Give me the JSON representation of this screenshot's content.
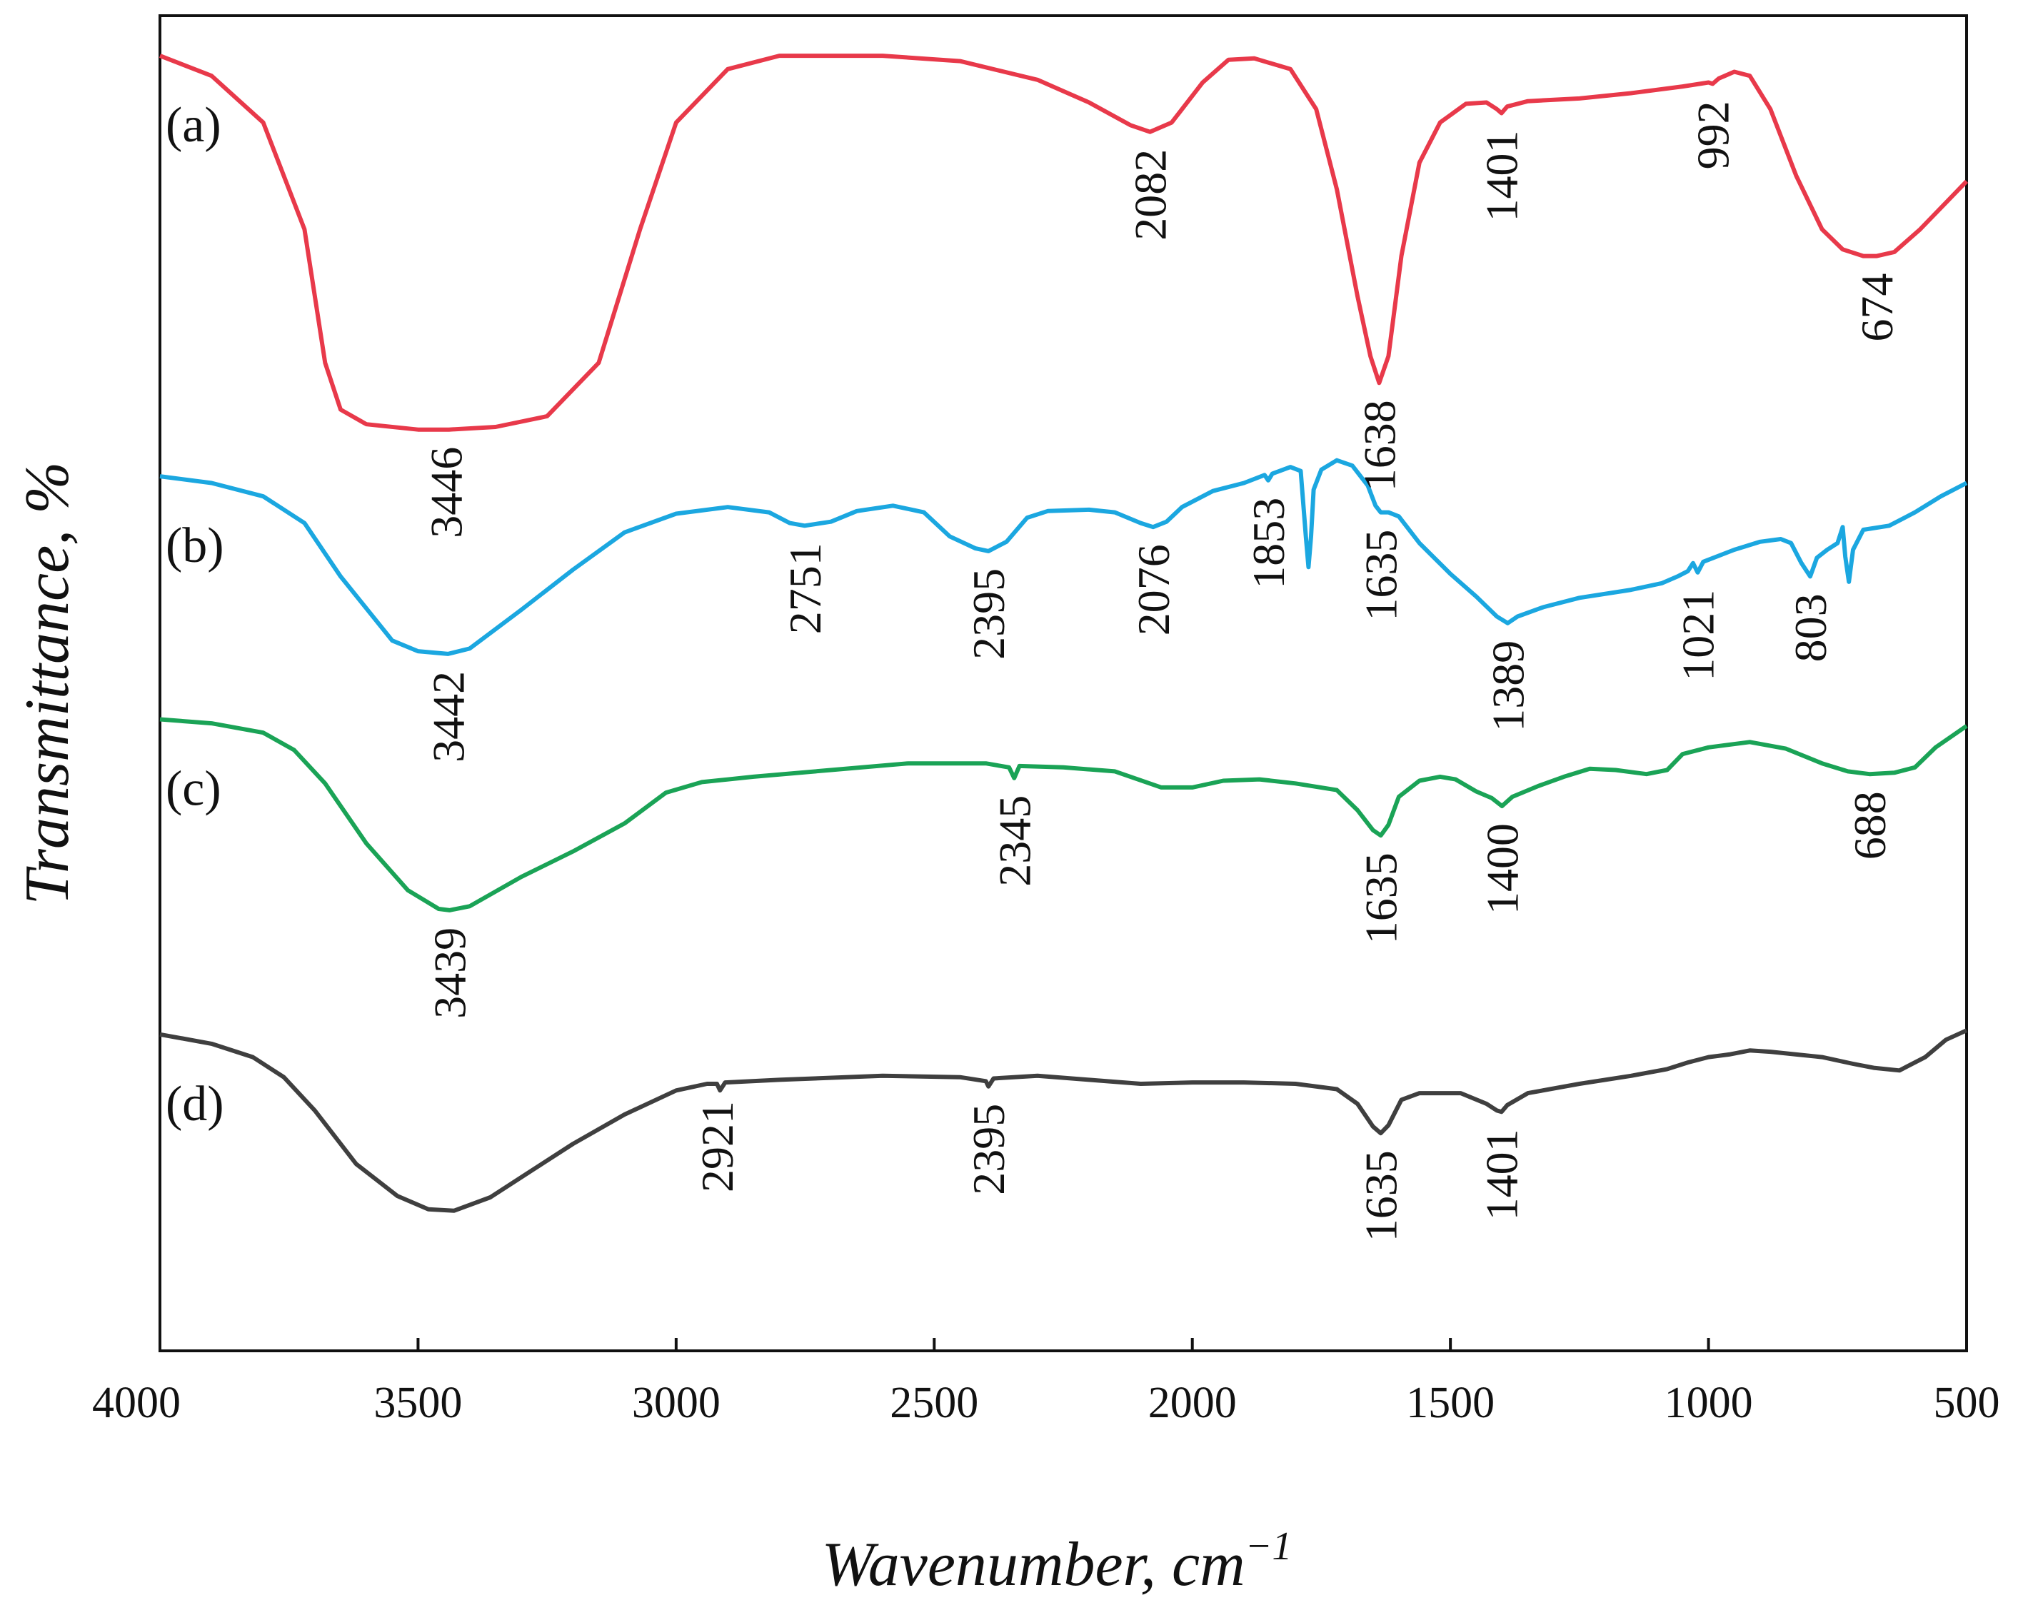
{
  "chart_data": {
    "type": "line",
    "title": "",
    "xlabel": "Wavenumber, cm",
    "xlabel_superscript": "−1",
    "ylabel": "Transmittance, %",
    "xlim": [
      4000,
      500
    ],
    "x_reversed": true,
    "x_ticks": [
      4000,
      3500,
      3000,
      2500,
      2000,
      1500,
      1000,
      500
    ],
    "x_tick_labels": [
      "4000",
      "3500",
      "3000",
      "2500",
      "2000",
      "1500",
      "1000",
      "500"
    ],
    "ylim": [
      0,
      100
    ],
    "y_ticks_shown": false,
    "grid": false,
    "series": [
      {
        "name": "(a)",
        "color": "#e8394a",
        "points": [
          [
            4000,
            97
          ],
          [
            3900,
            95.5
          ],
          [
            3800,
            92
          ],
          [
            3720,
            84
          ],
          [
            3680,
            74
          ],
          [
            3650,
            70.5
          ],
          [
            3600,
            69.4
          ],
          [
            3500,
            69
          ],
          [
            3440,
            69
          ],
          [
            3350,
            69.2
          ],
          [
            3250,
            70
          ],
          [
            3150,
            74
          ],
          [
            3070,
            84
          ],
          [
            3000,
            92
          ],
          [
            2900,
            96
          ],
          [
            2800,
            97
          ],
          [
            2600,
            97
          ],
          [
            2450,
            96.6
          ],
          [
            2300,
            95.2
          ],
          [
            2200,
            93.5
          ],
          [
            2120,
            91.8
          ],
          [
            2082,
            91.3
          ],
          [
            2040,
            92
          ],
          [
            1980,
            95
          ],
          [
            1930,
            96.7
          ],
          [
            1880,
            96.8
          ],
          [
            1810,
            96
          ],
          [
            1760,
            93
          ],
          [
            1720,
            87
          ],
          [
            1680,
            79
          ],
          [
            1655,
            74.5
          ],
          [
            1638,
            72.5
          ],
          [
            1620,
            74.5
          ],
          [
            1595,
            82
          ],
          [
            1560,
            89
          ],
          [
            1520,
            92
          ],
          [
            1470,
            93.4
          ],
          [
            1430,
            93.5
          ],
          [
            1410,
            93
          ],
          [
            1401,
            92.7
          ],
          [
            1390,
            93.2
          ],
          [
            1350,
            93.6
          ],
          [
            1250,
            93.8
          ],
          [
            1150,
            94.2
          ],
          [
            1050,
            94.7
          ],
          [
            1000,
            95
          ],
          [
            992,
            94.9
          ],
          [
            980,
            95.3
          ],
          [
            950,
            95.8
          ],
          [
            920,
            95.5
          ],
          [
            880,
            93
          ],
          [
            830,
            88
          ],
          [
            780,
            84
          ],
          [
            740,
            82.5
          ],
          [
            700,
            82
          ],
          [
            674,
            82
          ],
          [
            640,
            82.3
          ],
          [
            590,
            84
          ],
          [
            540,
            86
          ],
          [
            500,
            87.6
          ]
        ]
      },
      {
        "name": "(b)",
        "color": "#1ba7e0",
        "points": [
          [
            4000,
            65.5
          ],
          [
            3900,
            65
          ],
          [
            3800,
            64
          ],
          [
            3720,
            62
          ],
          [
            3650,
            58
          ],
          [
            3550,
            53.2
          ],
          [
            3500,
            52.4
          ],
          [
            3442,
            52.2
          ],
          [
            3400,
            52.6
          ],
          [
            3300,
            55.5
          ],
          [
            3200,
            58.5
          ],
          [
            3100,
            61.3
          ],
          [
            3000,
            62.7
          ],
          [
            2900,
            63.2
          ],
          [
            2820,
            62.8
          ],
          [
            2780,
            62
          ],
          [
            2751,
            61.8
          ],
          [
            2700,
            62.1
          ],
          [
            2650,
            62.9
          ],
          [
            2580,
            63.3
          ],
          [
            2520,
            62.8
          ],
          [
            2470,
            61
          ],
          [
            2420,
            60.1
          ],
          [
            2395,
            59.9
          ],
          [
            2360,
            60.6
          ],
          [
            2320,
            62.4
          ],
          [
            2280,
            62.9
          ],
          [
            2200,
            63
          ],
          [
            2150,
            62.8
          ],
          [
            2100,
            62
          ],
          [
            2076,
            61.7
          ],
          [
            2050,
            62.1
          ],
          [
            2020,
            63.2
          ],
          [
            1960,
            64.4
          ],
          [
            1900,
            65
          ],
          [
            1860,
            65.6
          ],
          [
            1853,
            65.2
          ],
          [
            1845,
            65.7
          ],
          [
            1810,
            66.2
          ],
          [
            1790,
            65.9
          ],
          [
            1780,
            61
          ],
          [
            1775,
            58.7
          ],
          [
            1770,
            61
          ],
          [
            1765,
            64.5
          ],
          [
            1750,
            66
          ],
          [
            1720,
            66.7
          ],
          [
            1690,
            66.3
          ],
          [
            1660,
            64.8
          ],
          [
            1645,
            63.3
          ],
          [
            1635,
            62.8
          ],
          [
            1620,
            62.8
          ],
          [
            1600,
            62.5
          ],
          [
            1560,
            60.5
          ],
          [
            1500,
            58.2
          ],
          [
            1450,
            56.5
          ],
          [
            1410,
            55
          ],
          [
            1389,
            54.5
          ],
          [
            1370,
            55
          ],
          [
            1320,
            55.7
          ],
          [
            1250,
            56.4
          ],
          [
            1150,
            57
          ],
          [
            1090,
            57.5
          ],
          [
            1060,
            58
          ],
          [
            1040,
            58.4
          ],
          [
            1030,
            59
          ],
          [
            1021,
            58.3
          ],
          [
            1010,
            59.1
          ],
          [
            950,
            60
          ],
          [
            900,
            60.6
          ],
          [
            860,
            60.8
          ],
          [
            840,
            60.5
          ],
          [
            820,
            59
          ],
          [
            803,
            58
          ],
          [
            790,
            59.4
          ],
          [
            770,
            60
          ],
          [
            750,
            60.5
          ],
          [
            740,
            61.7
          ],
          [
            735,
            59.5
          ],
          [
            728,
            57.6
          ],
          [
            720,
            60
          ],
          [
            700,
            61.5
          ],
          [
            650,
            61.8
          ],
          [
            600,
            62.8
          ],
          [
            550,
            64
          ],
          [
            500,
            65
          ]
        ]
      },
      {
        "name": "(c)",
        "color": "#1aa356",
        "points": [
          [
            4000,
            47.3
          ],
          [
            3900,
            47
          ],
          [
            3800,
            46.3
          ],
          [
            3740,
            45
          ],
          [
            3680,
            42.5
          ],
          [
            3600,
            38
          ],
          [
            3520,
            34.5
          ],
          [
            3460,
            33.1
          ],
          [
            3439,
            33
          ],
          [
            3400,
            33.3
          ],
          [
            3300,
            35.5
          ],
          [
            3200,
            37.4
          ],
          [
            3100,
            39.5
          ],
          [
            3020,
            41.8
          ],
          [
            2950,
            42.6
          ],
          [
            2850,
            43
          ],
          [
            2700,
            43.5
          ],
          [
            2550,
            44
          ],
          [
            2400,
            44
          ],
          [
            2355,
            43.7
          ],
          [
            2345,
            42.9
          ],
          [
            2335,
            43.8
          ],
          [
            2250,
            43.7
          ],
          [
            2150,
            43.4
          ],
          [
            2060,
            42.2
          ],
          [
            2000,
            42.2
          ],
          [
            1940,
            42.7
          ],
          [
            1870,
            42.8
          ],
          [
            1800,
            42.5
          ],
          [
            1720,
            42
          ],
          [
            1680,
            40.5
          ],
          [
            1650,
            39
          ],
          [
            1635,
            38.6
          ],
          [
            1620,
            39.4
          ],
          [
            1600,
            41.5
          ],
          [
            1560,
            42.7
          ],
          [
            1520,
            43
          ],
          [
            1490,
            42.8
          ],
          [
            1450,
            41.9
          ],
          [
            1420,
            41.4
          ],
          [
            1400,
            40.8
          ],
          [
            1380,
            41.5
          ],
          [
            1330,
            42.3
          ],
          [
            1280,
            43
          ],
          [
            1230,
            43.6
          ],
          [
            1180,
            43.5
          ],
          [
            1120,
            43.2
          ],
          [
            1080,
            43.5
          ],
          [
            1050,
            44.7
          ],
          [
            1000,
            45.2
          ],
          [
            920,
            45.6
          ],
          [
            850,
            45.1
          ],
          [
            780,
            44
          ],
          [
            730,
            43.4
          ],
          [
            688,
            43.2
          ],
          [
            640,
            43.3
          ],
          [
            600,
            43.7
          ],
          [
            560,
            45.2
          ],
          [
            500,
            46.8
          ]
        ]
      },
      {
        "name": "(d)",
        "color": "#3f3f3f",
        "points": [
          [
            4000,
            23.7
          ],
          [
            3900,
            23
          ],
          [
            3820,
            22
          ],
          [
            3760,
            20.5
          ],
          [
            3700,
            18
          ],
          [
            3620,
            14
          ],
          [
            3540,
            11.6
          ],
          [
            3480,
            10.6
          ],
          [
            3430,
            10.5
          ],
          [
            3360,
            11.5
          ],
          [
            3280,
            13.5
          ],
          [
            3200,
            15.5
          ],
          [
            3100,
            17.7
          ],
          [
            3000,
            19.5
          ],
          [
            2940,
            20
          ],
          [
            2921,
            20
          ],
          [
            2915,
            19.5
          ],
          [
            2905,
            20.1
          ],
          [
            2800,
            20.3
          ],
          [
            2600,
            20.6
          ],
          [
            2450,
            20.5
          ],
          [
            2400,
            20.2
          ],
          [
            2395,
            19.8
          ],
          [
            2385,
            20.4
          ],
          [
            2300,
            20.6
          ],
          [
            2200,
            20.3
          ],
          [
            2100,
            20
          ],
          [
            2000,
            20.1
          ],
          [
            1900,
            20.1
          ],
          [
            1800,
            20
          ],
          [
            1720,
            19.6
          ],
          [
            1680,
            18.5
          ],
          [
            1650,
            16.8
          ],
          [
            1635,
            16.3
          ],
          [
            1620,
            16.9
          ],
          [
            1595,
            18.8
          ],
          [
            1560,
            19.3
          ],
          [
            1480,
            19.3
          ],
          [
            1430,
            18.5
          ],
          [
            1410,
            18
          ],
          [
            1401,
            17.9
          ],
          [
            1390,
            18.4
          ],
          [
            1350,
            19.3
          ],
          [
            1250,
            20
          ],
          [
            1150,
            20.6
          ],
          [
            1080,
            21.1
          ],
          [
            1040,
            21.6
          ],
          [
            1000,
            22
          ],
          [
            960,
            22.2
          ],
          [
            920,
            22.5
          ],
          [
            880,
            22.4
          ],
          [
            830,
            22.2
          ],
          [
            780,
            22
          ],
          [
            720,
            21.5
          ],
          [
            680,
            21.2
          ],
          [
            630,
            21
          ],
          [
            580,
            22
          ],
          [
            540,
            23.3
          ],
          [
            500,
            24
          ]
        ]
      }
    ],
    "annotations": [
      {
        "series": "(a)",
        "text": "3446",
        "x": 3446
      },
      {
        "series": "(a)",
        "text": "2082",
        "x": 2082
      },
      {
        "series": "(a)",
        "text": "1638",
        "x": 1638
      },
      {
        "series": "(a)",
        "text": "1401",
        "x": 1401
      },
      {
        "series": "(a)",
        "text": "992",
        "x": 992
      },
      {
        "series": "(a)",
        "text": "674",
        "x": 674
      },
      {
        "series": "(b)",
        "text": "3442",
        "x": 3442
      },
      {
        "series": "(b)",
        "text": "2751",
        "x": 2751
      },
      {
        "series": "(b)",
        "text": "2395",
        "x": 2395
      },
      {
        "series": "(b)",
        "text": "2076",
        "x": 2076
      },
      {
        "series": "(b)",
        "text": "1853",
        "x": 1853
      },
      {
        "series": "(b)",
        "text": "1635",
        "x": 1635
      },
      {
        "series": "(b)",
        "text": "1389",
        "x": 1389
      },
      {
        "series": "(b)",
        "text": "1021",
        "x": 1021
      },
      {
        "series": "(b)",
        "text": "803",
        "x": 803
      },
      {
        "series": "(c)",
        "text": "3439",
        "x": 3439
      },
      {
        "series": "(c)",
        "text": "2345",
        "x": 2345
      },
      {
        "series": "(c)",
        "text": "1635",
        "x": 1635
      },
      {
        "series": "(c)",
        "text": "1400",
        "x": 1400
      },
      {
        "series": "(c)",
        "text": "688",
        "x": 688
      },
      {
        "series": "(d)",
        "text": "2921",
        "x": 2921
      },
      {
        "series": "(d)",
        "text": "2395",
        "x": 2395
      },
      {
        "series": "(d)",
        "text": "1635",
        "x": 1635
      },
      {
        "series": "(d)",
        "text": "1401",
        "x": 1401
      }
    ]
  }
}
